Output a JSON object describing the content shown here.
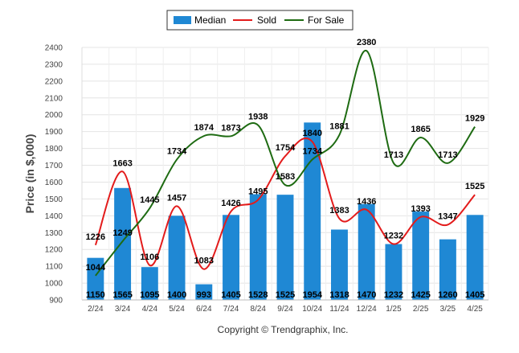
{
  "chart_data": {
    "type": "bar",
    "categories": [
      "2/24",
      "3/24",
      "4/24",
      "5/24",
      "6/24",
      "7/24",
      "8/24",
      "9/24",
      "10/24",
      "11/24",
      "12/24",
      "1/25",
      "2/25",
      "3/25",
      "4/25"
    ],
    "series": [
      {
        "name": "Median",
        "kind": "bar",
        "values": [
          1150,
          1565,
          1095,
          1400,
          993,
          1405,
          1528,
          1525,
          1954,
          1318,
          1470,
          1232,
          1425,
          1260,
          1405
        ]
      },
      {
        "name": "Sold",
        "kind": "line",
        "values": [
          1226,
          1663,
          1106,
          1457,
          1083,
          1426,
          1495,
          1754,
          1840,
          1383,
          1436,
          1232,
          1393,
          1347,
          1525
        ]
      },
      {
        "name": "For Sale",
        "kind": "line",
        "values": [
          1044,
          1249,
          1445,
          1734,
          1874,
          1873,
          1938,
          1583,
          1734,
          1881,
          2380,
          1713,
          1865,
          1713,
          1929
        ]
      }
    ],
    "colors": {
      "Median": "#1f88d4",
      "Sold": "#e31b1b",
      "For Sale": "#1e6b12"
    },
    "ylabel": "Price (in $,000)",
    "xlabel": "",
    "ylim": [
      900,
      2400
    ],
    "yticks": [
      900,
      1000,
      1100,
      1200,
      1300,
      1400,
      1500,
      1600,
      1700,
      1800,
      1900,
      2000,
      2100,
      2200,
      2300,
      2400
    ],
    "grid": true,
    "legend": "top-center",
    "copyright": "Copyright © Trendgraphix, Inc."
  }
}
